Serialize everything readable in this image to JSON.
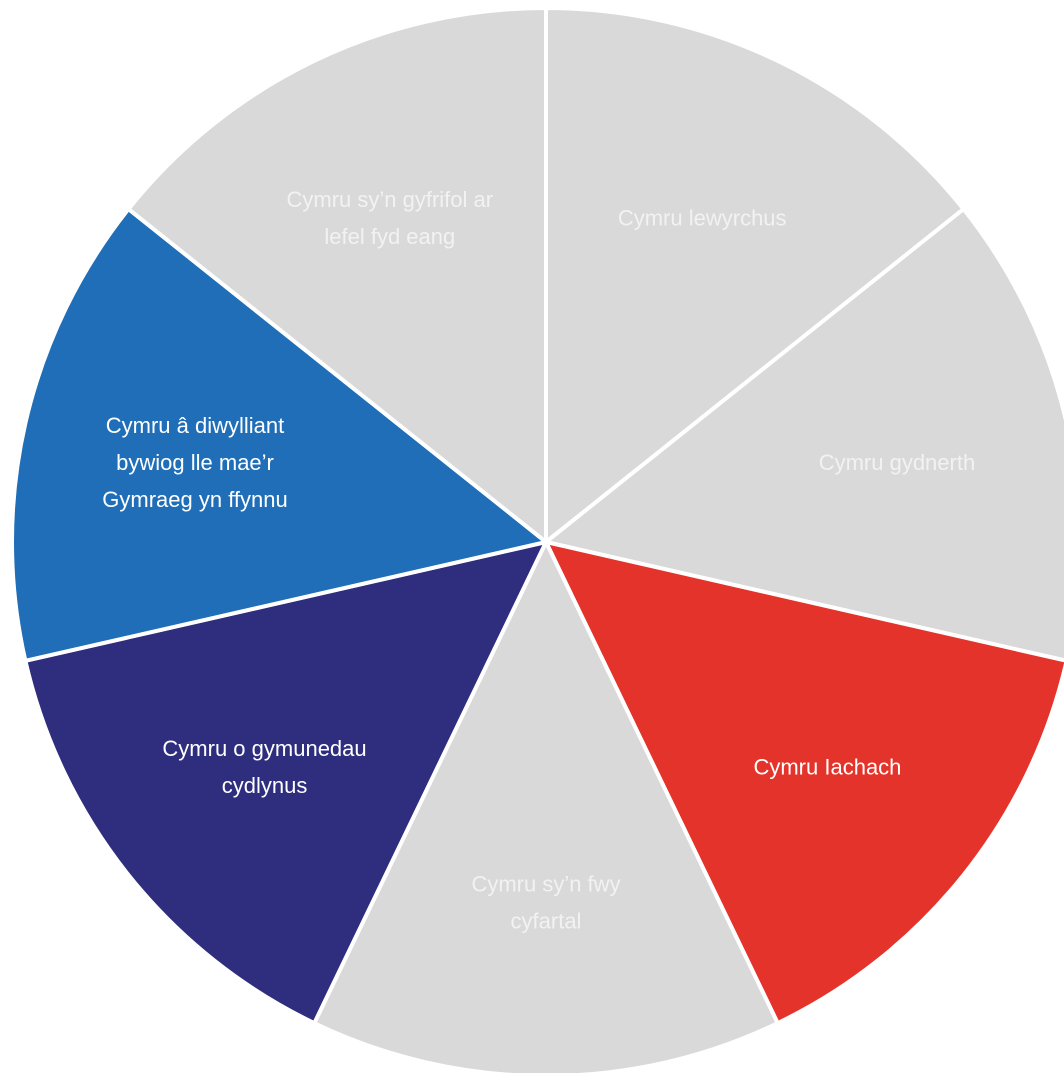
{
  "colors": {
    "background": "#ffffff",
    "separator": "#ffffff",
    "inactive_fill": "#d9d9d9",
    "inactive_text": "#f2f2f2",
    "active_text": "#ffffff"
  },
  "segments": [
    {
      "id": "prosperous",
      "lines": [
        "Cymru lewyrchus"
      ],
      "fill": "#d9d9d9",
      "text_color": "#f2f2f2",
      "highlighted": false
    },
    {
      "id": "resilient",
      "lines": [
        "Cymru gydnerth"
      ],
      "fill": "#d9d9d9",
      "text_color": "#f2f2f2",
      "highlighted": false
    },
    {
      "id": "healthier",
      "lines": [
        "Cymru Iachach"
      ],
      "fill": "#e4332a",
      "text_color": "#ffffff",
      "highlighted": true
    },
    {
      "id": "more-equal",
      "lines": [
        "Cymru sy’n fwy",
        "cyfartal"
      ],
      "fill": "#d9d9d9",
      "text_color": "#f2f2f2",
      "highlighted": false
    },
    {
      "id": "cohesive-communities",
      "lines": [
        "Cymru o gymunedau",
        "cydlynus"
      ],
      "fill": "#2e2d7e",
      "text_color": "#ffffff",
      "highlighted": true
    },
    {
      "id": "vibrant-culture",
      "lines": [
        "Cymru â diwylliant",
        "bywiog lle mae’r",
        "Gymraeg yn ffynnu"
      ],
      "fill": "#1f6eb7",
      "text_color": "#ffffff",
      "highlighted": true
    },
    {
      "id": "globally-responsible",
      "lines": [
        "Cymru sy’n gyfrifol ar",
        "lefel fyd eang"
      ],
      "fill": "#d9d9d9",
      "text_color": "#f2f2f2",
      "highlighted": false
    }
  ]
}
